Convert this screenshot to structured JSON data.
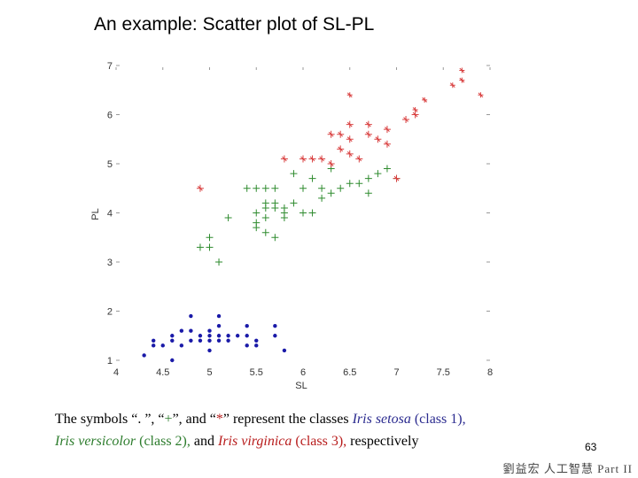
{
  "title": "An example: Scatter plot of SL-PL",
  "caption": {
    "l1a": "The symbols “. ”, “",
    "plus": "+",
    "l1b": "”, and “",
    "star": "*",
    "l1c": "” represent the classes ",
    "setosa": "Iris setosa",
    "class1": " (class 1),",
    "versicolor": "Iris versicolor",
    "class2": " (class 2),",
    "and": " and ",
    "virginica": "Iris virginica",
    "class3": " (class 3),",
    "respectively": " respectively"
  },
  "page_number": "63",
  "footer": "劉益宏 人工智慧 Part II",
  "chart_data": {
    "type": "scatter",
    "title": "",
    "xlabel": "SL",
    "ylabel": "PL",
    "xlim": [
      4,
      8
    ],
    "ylim": [
      1,
      7
    ],
    "x_ticks": [
      4,
      4.5,
      5,
      5.5,
      6,
      6.5,
      7,
      7.5,
      8
    ],
    "x_tick_labels": [
      "4",
      "4.5",
      "5",
      "5.5",
      "6",
      "6.5",
      "7",
      "7.5",
      "8"
    ],
    "y_ticks": [
      1,
      2,
      3,
      4,
      5,
      6,
      7
    ],
    "y_tick_labels": [
      "1",
      "2",
      "3",
      "4",
      "5",
      "6",
      "7"
    ],
    "grid": false,
    "series": [
      {
        "marker": "dot",
        "color": "#1a1aa8",
        "points": [
          [
            4.3,
            1.1
          ],
          [
            4.4,
            1.3
          ],
          [
            4.4,
            1.4
          ],
          [
            4.5,
            1.3
          ],
          [
            4.6,
            1.0
          ],
          [
            4.6,
            1.4
          ],
          [
            4.6,
            1.5
          ],
          [
            4.7,
            1.3
          ],
          [
            4.7,
            1.6
          ],
          [
            4.8,
            1.4
          ],
          [
            4.8,
            1.6
          ],
          [
            4.8,
            1.9
          ],
          [
            4.9,
            1.4
          ],
          [
            4.9,
            1.5
          ],
          [
            5.0,
            1.2
          ],
          [
            5.0,
            1.4
          ],
          [
            5.0,
            1.5
          ],
          [
            5.0,
            1.6
          ],
          [
            5.1,
            1.4
          ],
          [
            5.1,
            1.5
          ],
          [
            5.1,
            1.7
          ],
          [
            5.1,
            1.9
          ],
          [
            5.2,
            1.4
          ],
          [
            5.2,
            1.5
          ],
          [
            5.3,
            1.5
          ],
          [
            5.4,
            1.3
          ],
          [
            5.4,
            1.5
          ],
          [
            5.4,
            1.7
          ],
          [
            5.5,
            1.3
          ],
          [
            5.5,
            1.4
          ],
          [
            5.7,
            1.5
          ],
          [
            5.7,
            1.7
          ],
          [
            5.8,
            1.2
          ]
        ]
      },
      {
        "marker": "plus",
        "color": "#2e8b2e",
        "points": [
          [
            4.9,
            3.3
          ],
          [
            5.0,
            3.3
          ],
          [
            5.0,
            3.5
          ],
          [
            5.1,
            3.0
          ],
          [
            5.2,
            3.9
          ],
          [
            5.4,
            4.5
          ],
          [
            5.5,
            4.5
          ],
          [
            5.5,
            4.0
          ],
          [
            5.5,
            3.8
          ],
          [
            5.5,
            3.7
          ],
          [
            5.6,
            4.5
          ],
          [
            5.6,
            4.2
          ],
          [
            5.6,
            4.1
          ],
          [
            5.6,
            3.9
          ],
          [
            5.6,
            3.6
          ],
          [
            5.7,
            4.5
          ],
          [
            5.7,
            4.2
          ],
          [
            5.7,
            4.1
          ],
          [
            5.7,
            3.5
          ],
          [
            5.8,
            4.1
          ],
          [
            5.8,
            4.0
          ],
          [
            5.8,
            3.9
          ],
          [
            5.9,
            4.8
          ],
          [
            5.9,
            4.2
          ],
          [
            6.0,
            4.5
          ],
          [
            6.0,
            4.0
          ],
          [
            6.1,
            4.7
          ],
          [
            6.1,
            4.0
          ],
          [
            6.2,
            4.5
          ],
          [
            6.2,
            4.3
          ],
          [
            6.3,
            4.9
          ],
          [
            6.3,
            4.4
          ],
          [
            6.4,
            4.5
          ],
          [
            6.5,
            4.6
          ],
          [
            6.6,
            4.6
          ],
          [
            6.7,
            4.7
          ],
          [
            6.7,
            4.4
          ],
          [
            6.8,
            4.8
          ],
          [
            6.9,
            4.9
          ],
          [
            7.0,
            4.7
          ]
        ]
      },
      {
        "marker": "star",
        "color": "#d94040",
        "points": [
          [
            4.9,
            4.5
          ],
          [
            5.8,
            5.1
          ],
          [
            6.0,
            5.1
          ],
          [
            6.1,
            5.1
          ],
          [
            6.2,
            5.1
          ],
          [
            6.3,
            5.0
          ],
          [
            6.3,
            5.6
          ],
          [
            6.4,
            5.3
          ],
          [
            6.4,
            5.6
          ],
          [
            6.5,
            5.2
          ],
          [
            6.5,
            5.5
          ],
          [
            6.5,
            5.8
          ],
          [
            6.5,
            6.4
          ],
          [
            6.6,
            5.1
          ],
          [
            6.7,
            5.6
          ],
          [
            6.7,
            5.8
          ],
          [
            6.8,
            5.5
          ],
          [
            6.9,
            5.4
          ],
          [
            6.9,
            5.7
          ],
          [
            7.0,
            4.7
          ],
          [
            7.1,
            5.9
          ],
          [
            7.2,
            6.0
          ],
          [
            7.2,
            6.1
          ],
          [
            7.3,
            6.3
          ],
          [
            7.6,
            6.6
          ],
          [
            7.7,
            6.7
          ],
          [
            7.7,
            6.9
          ],
          [
            7.9,
            6.4
          ]
        ]
      }
    ]
  }
}
